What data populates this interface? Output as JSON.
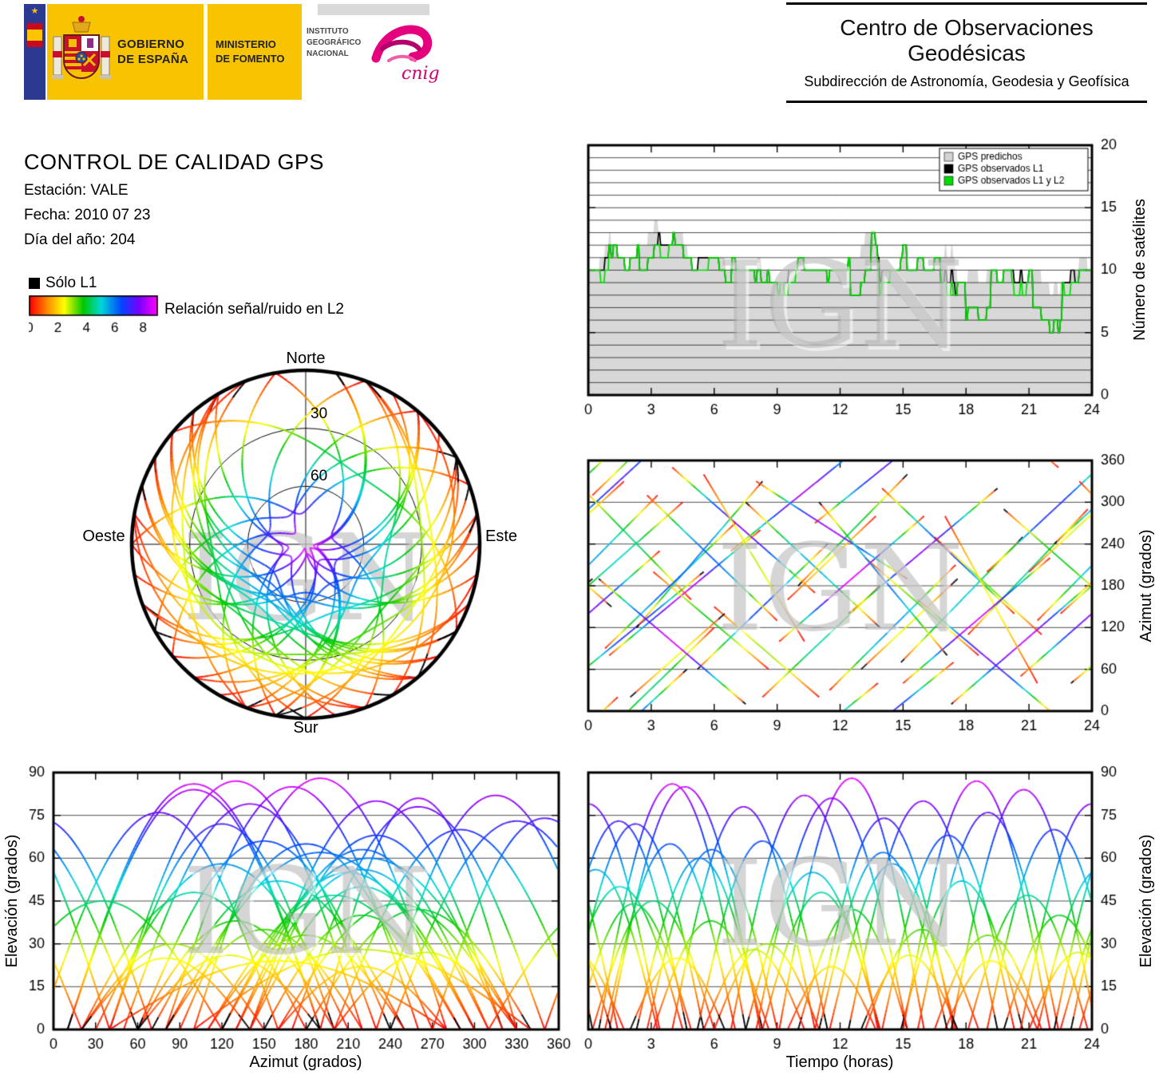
{
  "page": {
    "watermark": "IGN"
  },
  "header": {
    "gobierno": [
      "GOBIERNO",
      "DE ESPAÑA"
    ],
    "ministerio": [
      "MINISTERIO",
      "DE FOMENTO"
    ],
    "instituto": [
      "INSTITUTO",
      "GEOGRÁFICO",
      "NACIONAL"
    ],
    "cnig": "cnig",
    "center_title": "Centro de Observaciones Geodésicas",
    "center_subtitle": "Subdirección de Astronomía, Geodesia y Geofísica"
  },
  "info": {
    "title": "CONTROL DE CALIDAD GPS",
    "station": "Estación: VALE",
    "date": "Fecha: 2010 07 23",
    "day_of_year": "Día del año: 204"
  },
  "snr_legend": {
    "solo_l1": "Sólo L1",
    "colorbar_label": "Relación señal/ruido en L2",
    "ticks": [
      0,
      2,
      4,
      6,
      8
    ],
    "range": [
      0,
      9
    ],
    "colormap": [
      [
        0.0,
        "#ff0000"
      ],
      [
        0.14,
        "#ff8c00"
      ],
      [
        0.27,
        "#ffff00"
      ],
      [
        0.42,
        "#00c800"
      ],
      [
        0.56,
        "#00d8d8"
      ],
      [
        0.72,
        "#0046ff"
      ],
      [
        0.86,
        "#7800ff"
      ],
      [
        1.0,
        "#ff00ff"
      ]
    ]
  },
  "skyplot": {
    "north": "Norte",
    "south": "Sur",
    "west": "Oeste",
    "east": "Este",
    "ring_labels": [
      "30",
      "60"
    ],
    "elevation_rings": [
      0,
      30,
      60
    ]
  },
  "chart_data": [
    {
      "id": "sat_count",
      "type": "area",
      "ylabel": "Número de satélites",
      "ylim": [
        0,
        20
      ],
      "yticks": [
        0,
        5,
        10,
        15,
        20
      ],
      "xlim": [
        0,
        24
      ],
      "xticks": [
        0,
        3,
        6,
        9,
        12,
        15,
        18,
        21,
        24
      ],
      "grid_step": 1,
      "legend": [
        {
          "label": "GPS predichos",
          "color": "#d3d3d3"
        },
        {
          "label": "GPS observados L1",
          "color": "#000000"
        },
        {
          "label": "GPS observados L1 y L2",
          "color": "#00dd00"
        }
      ],
      "series_source": "satellite_passes",
      "l1_dips": [
        [
          0.5,
          1.2,
          1
        ],
        [
          2.4,
          3.3,
          2
        ],
        [
          4.1,
          4.7,
          1
        ],
        [
          6.2,
          6.8,
          1
        ],
        [
          7.9,
          8.5,
          1
        ],
        [
          12.5,
          13.5,
          3
        ],
        [
          16.8,
          17.6,
          2
        ],
        [
          18.0,
          19.2,
          3
        ],
        [
          21.2,
          22.6,
          3
        ],
        [
          23.2,
          23.8,
          1
        ]
      ],
      "l2_dips": [
        [
          0.6,
          1.0,
          1
        ],
        [
          3.3,
          3.8,
          1
        ],
        [
          5.2,
          5.7,
          1
        ],
        [
          9.3,
          9.9,
          1
        ],
        [
          13.8,
          14.4,
          1
        ],
        [
          17.0,
          17.5,
          1
        ],
        [
          20.2,
          20.9,
          1
        ],
        [
          22.7,
          23.2,
          1
        ]
      ]
    },
    {
      "id": "azimuth_vs_time",
      "type": "line",
      "ylabel": "Azimut (grados)",
      "ylim": [
        0,
        360
      ],
      "yticks": [
        0,
        60,
        120,
        180,
        240,
        300,
        360
      ],
      "xlim": [
        0,
        24
      ],
      "xticks": [
        0,
        3,
        6,
        9,
        12,
        15,
        18,
        21,
        24
      ],
      "series_source": "satellite_passes"
    },
    {
      "id": "elevation_vs_azimuth",
      "type": "line",
      "ylabel": "Elevación (grados)",
      "xlabel": "Azimut (grados)",
      "ylim": [
        0,
        90
      ],
      "yticks": [
        0,
        15,
        30,
        45,
        60,
        75,
        90
      ],
      "xlim": [
        0,
        360
      ],
      "xticks": [
        0,
        30,
        60,
        90,
        120,
        150,
        180,
        210,
        240,
        270,
        300,
        330,
        360
      ],
      "series_source": "satellite_passes"
    },
    {
      "id": "elevation_vs_time",
      "type": "line",
      "ylabel": "Elevación (grados)",
      "xlabel": "Tiempo (horas)",
      "ylim": [
        0,
        90
      ],
      "yticks": [
        0,
        15,
        30,
        45,
        60,
        75,
        90
      ],
      "xlim": [
        0,
        24
      ],
      "xticks": [
        0,
        3,
        6,
        9,
        12,
        15,
        18,
        21,
        24
      ],
      "series_source": "satellite_passes"
    }
  ],
  "satellite_passes": [
    [
      23.0,
      6.5,
      40,
      200,
      72
    ],
    [
      0.2,
      5.8,
      310,
      480,
      45
    ],
    [
      1.0,
      7.2,
      80,
      260,
      85
    ],
    [
      2.3,
      6.0,
      120,
      330,
      60
    ],
    [
      3.1,
      5.5,
      200,
      60,
      38
    ],
    [
      4.0,
      6.8,
      350,
      170,
      78
    ],
    [
      5.2,
      6.2,
      60,
      240,
      66
    ],
    [
      6.0,
      5.0,
      150,
      20,
      30
    ],
    [
      6.8,
      7.0,
      230,
      400,
      82
    ],
    [
      7.5,
      6.4,
      300,
      120,
      55
    ],
    [
      8.3,
      5.6,
      20,
      180,
      48
    ],
    [
      9.1,
      6.9,
      100,
      280,
      88
    ],
    [
      10.0,
      5.2,
      180,
      340,
      42
    ],
    [
      10.8,
      6.6,
      270,
      430,
      74
    ],
    [
      11.5,
      6.0,
      30,
      210,
      58
    ],
    [
      12.4,
      7.1,
      140,
      320,
      80
    ],
    [
      13.2,
      5.4,
      220,
      80,
      35
    ],
    [
      14.0,
      6.3,
      320,
      140,
      68
    ],
    [
      14.9,
      5.8,
      70,
      250,
      52
    ],
    [
      15.7,
      6.7,
      160,
      -10,
      76
    ],
    [
      16.5,
      5.1,
      250,
      110,
      33
    ],
    [
      17.3,
      6.9,
      10,
      190,
      84
    ],
    [
      18.1,
      5.7,
      110,
      290,
      47
    ],
    [
      19.0,
      6.4,
      200,
      380,
      70
    ],
    [
      19.8,
      5.3,
      290,
      150,
      40
    ],
    [
      20.6,
      6.8,
      50,
      230,
      79
    ],
    [
      21.4,
      5.9,
      130,
      310,
      56
    ],
    [
      22.2,
      6.5,
      240,
      420,
      73
    ],
    [
      23.4,
      5.5,
      330,
      160,
      44
    ],
    [
      0.8,
      6.2,
      90,
      270,
      65
    ],
    [
      2.0,
      4.5,
      20,
      140,
      25
    ],
    [
      5.5,
      4.8,
      340,
      100,
      28
    ],
    [
      9.5,
      4.2,
      160,
      280,
      22
    ],
    [
      13.0,
      4.6,
      60,
      190,
      26
    ],
    [
      17.0,
      4.4,
      280,
      40,
      24
    ],
    [
      21.0,
      4.7,
      200,
      330,
      27
    ],
    [
      0.5,
      7.0,
      190,
      10,
      86
    ],
    [
      8.0,
      7.2,
      330,
      190,
      81
    ],
    [
      15.0,
      7.0,
      40,
      220,
      87
    ],
    [
      11.0,
      6.1,
      300,
      80,
      62
    ],
    [
      22.5,
      6.0,
      140,
      300,
      50
    ],
    [
      2.8,
      6.2,
      310,
      130,
      63
    ]
  ]
}
